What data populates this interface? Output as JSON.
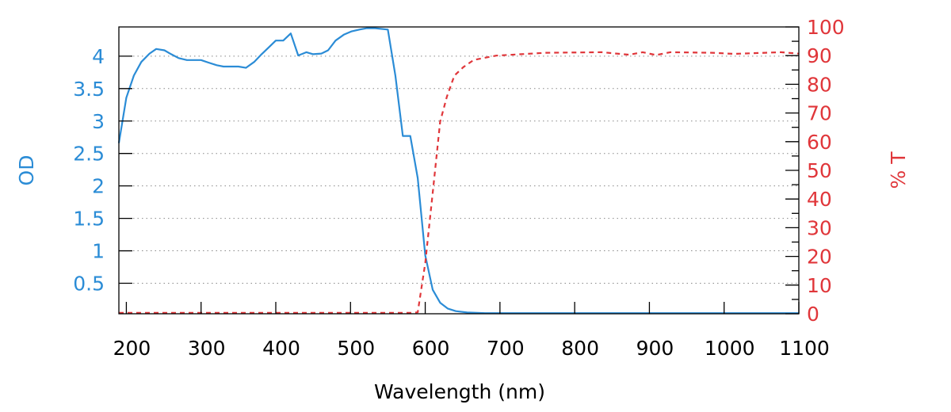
{
  "chart_data": {
    "type": "line",
    "xlabel": "Wavelength (nm)",
    "ylabel_left": "OD",
    "ylabel_right": "% T",
    "xlim": [
      190,
      1100
    ],
    "ylim_left": [
      0.03,
      4.45
    ],
    "ylim_right": [
      0,
      100
    ],
    "x_ticks": [
      200,
      300,
      400,
      500,
      600,
      700,
      800,
      900,
      1000,
      1100
    ],
    "y_ticks_left": [
      0.5,
      1,
      1.5,
      2,
      2.5,
      3,
      3.5,
      4
    ],
    "y_tick_labels_left": [
      "0.5",
      "1",
      "1.5",
      "2",
      "2.5",
      "3",
      "3.5",
      "4"
    ],
    "y_ticks_right": [
      0,
      10,
      20,
      30,
      40,
      50,
      60,
      70,
      80,
      90,
      100
    ],
    "grid": "horizontal dotted at left-axis ticks",
    "colors": {
      "od": "#2b8cd6",
      "t": "#e0363a",
      "axis": "#000000",
      "grid": "#888888"
    },
    "series": [
      {
        "name": "OD",
        "axis": "left",
        "style": "solid",
        "x": [
          190,
          200,
          210,
          220,
          231,
          240,
          251,
          260,
          270,
          281,
          300,
          310,
          321,
          330,
          350,
          360,
          371,
          381,
          391,
          400,
          410,
          420,
          430,
          441,
          450,
          461,
          470,
          480,
          491,
          501,
          512,
          522,
          533,
          550,
          560,
          570,
          580,
          590,
          600,
          610,
          620,
          630,
          641,
          656,
          680,
          720,
          800,
          900,
          1000,
          1100
        ],
        "y": [
          2.66,
          3.36,
          3.7,
          3.91,
          4.04,
          4.11,
          4.09,
          4.03,
          3.97,
          3.94,
          3.94,
          3.9,
          3.86,
          3.84,
          3.84,
          3.82,
          3.91,
          4.03,
          4.14,
          4.24,
          4.24,
          4.35,
          4.01,
          4.06,
          4.03,
          4.04,
          4.09,
          4.24,
          4.33,
          4.38,
          4.41,
          4.43,
          4.43,
          4.41,
          3.7,
          2.77,
          2.77,
          2.12,
          0.93,
          0.4,
          0.2,
          0.11,
          0.07,
          0.05,
          0.04,
          0.04,
          0.04,
          0.04,
          0.04,
          0.04
        ]
      },
      {
        "name": "% T",
        "axis": "right",
        "style": "dashed",
        "x": [
          190,
          300,
          400,
          500,
          580,
          590,
          600,
          611,
          620,
          629,
          639,
          651,
          665,
          695,
          762,
          836,
          873,
          891,
          909,
          928,
          984,
          1013,
          1076,
          1100
        ],
        "y": [
          0.3,
          0.3,
          0.3,
          0.3,
          0.3,
          0.5,
          17.7,
          44.5,
          67,
          75.7,
          83,
          86,
          88.5,
          90,
          91,
          91.2,
          90.3,
          91.2,
          90.2,
          91.2,
          91,
          90.6,
          91.2,
          90.7
        ]
      }
    ]
  }
}
